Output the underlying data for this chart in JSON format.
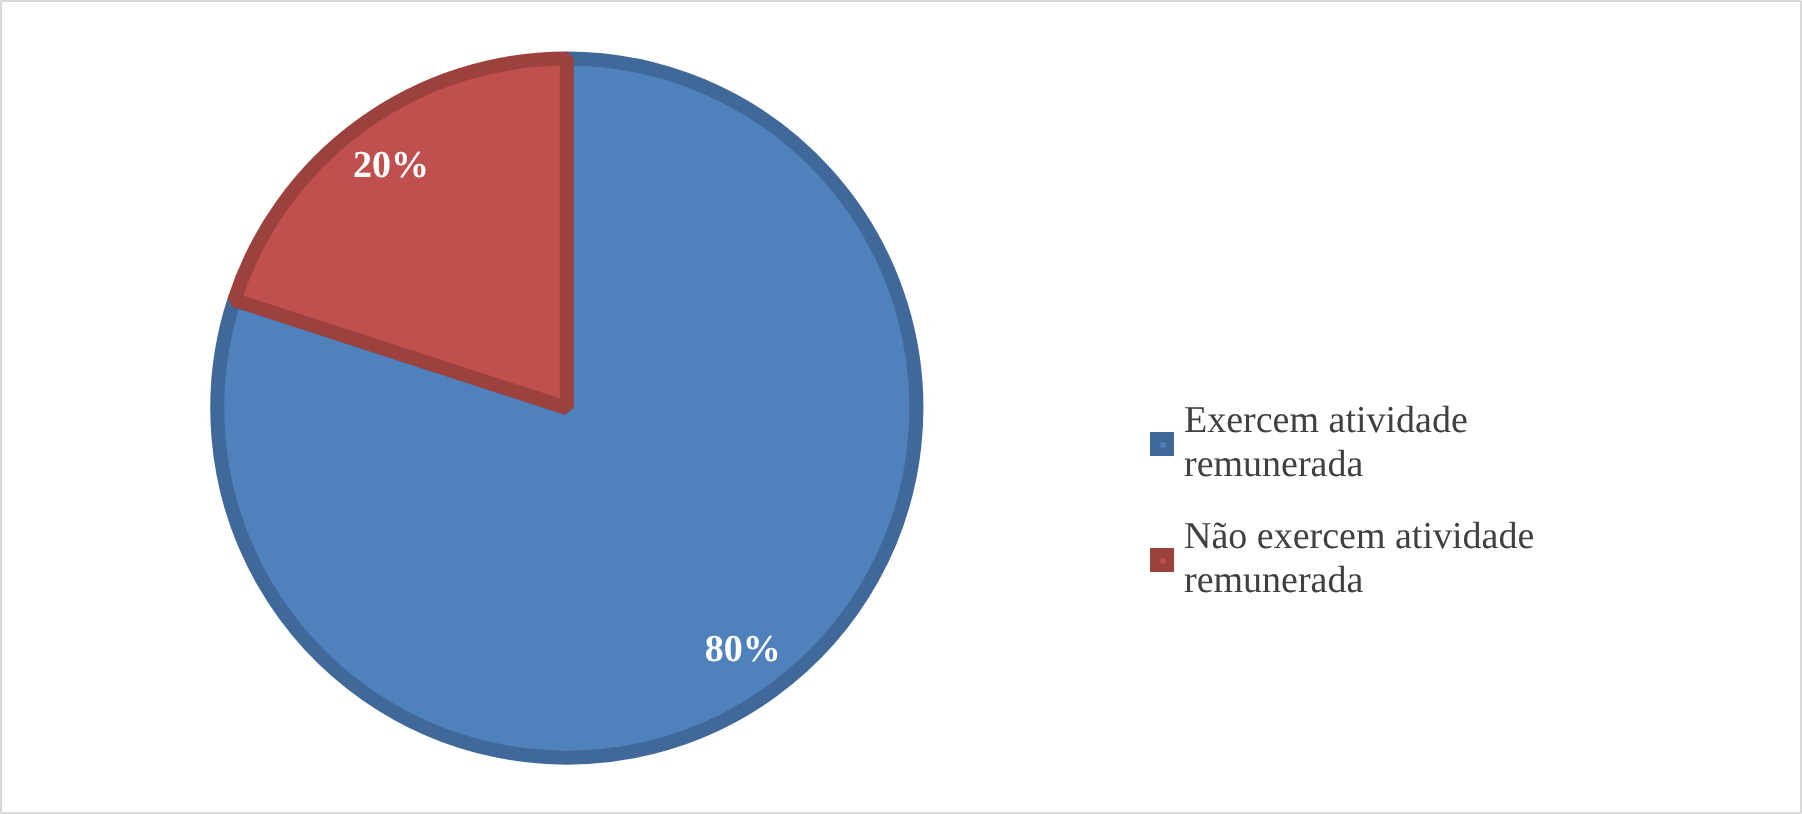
{
  "chart_data": {
    "type": "pie",
    "categories": [
      "Exercem atividade remunerada",
      "Não exercem atividade remunerada"
    ],
    "values": [
      80,
      20
    ],
    "colors": [
      "#4f81bd",
      "#c0504d"
    ],
    "value_labels": [
      "80%",
      "20%"
    ],
    "legend": "right"
  }
}
